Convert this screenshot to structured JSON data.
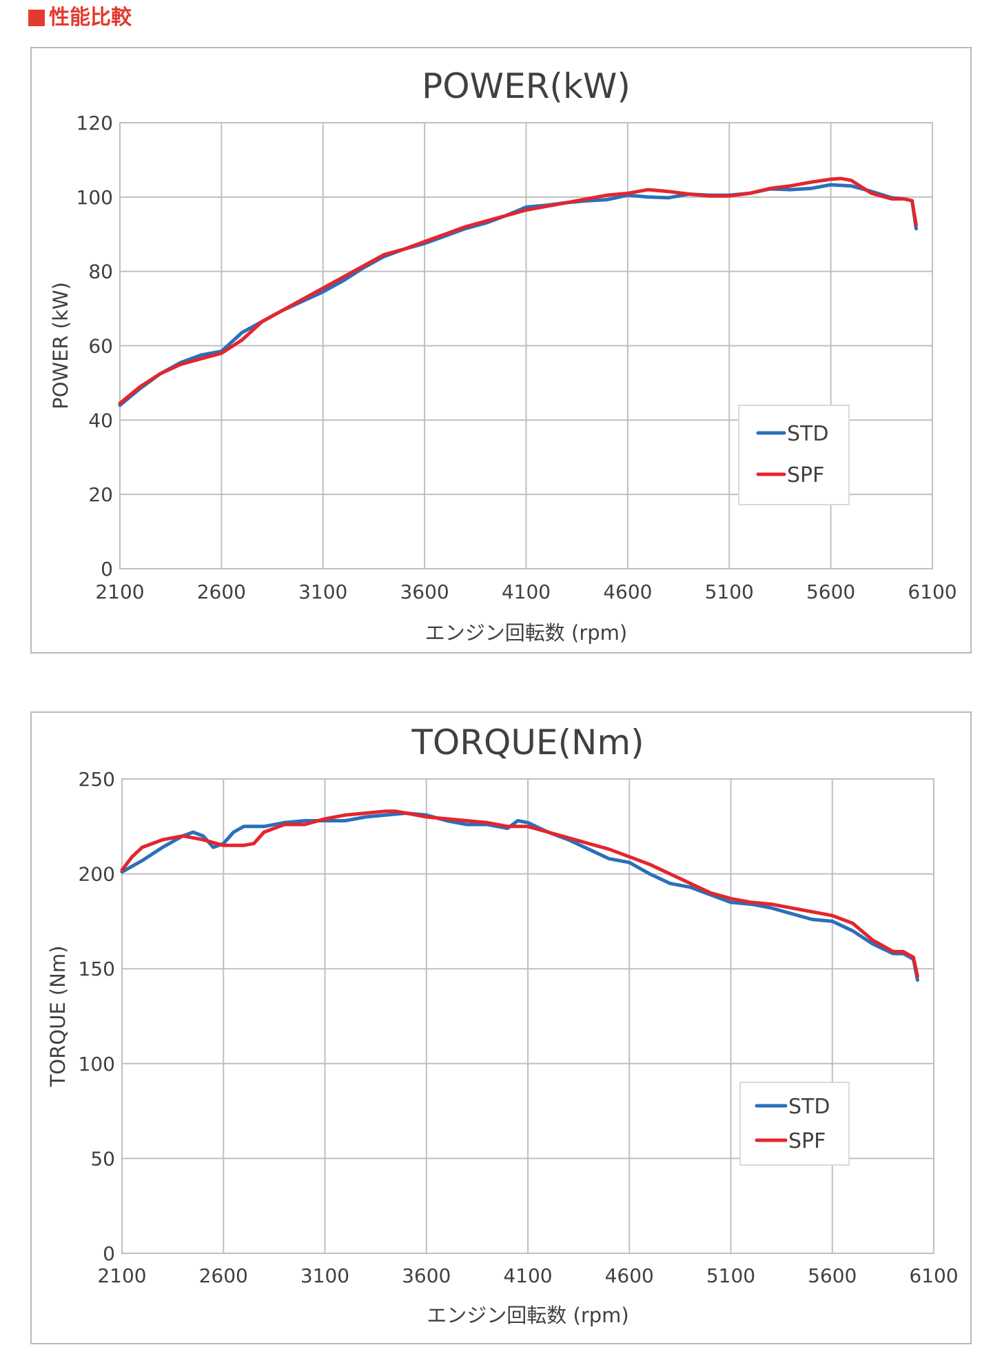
{
  "heading": {
    "text": "■性能比較",
    "label": "性能比較",
    "color": "#e33a2f"
  },
  "chart_data": [
    {
      "type": "line",
      "title": "POWER(kW)",
      "xlabel": "エンジン回転数 (rpm)",
      "ylabel": "POWER (kW)",
      "xlim": [
        2100,
        6100
      ],
      "ylim": [
        0,
        120
      ],
      "xticks": [
        2100,
        2600,
        3100,
        3600,
        4100,
        4600,
        5100,
        5600,
        6100
      ],
      "yticks": [
        0,
        20,
        40,
        60,
        80,
        100,
        120
      ],
      "grid": true,
      "legend_position": "right",
      "series": [
        {
          "name": "STD",
          "color": "#2a6fbb",
          "x": [
            2100,
            2200,
            2300,
            2400,
            2500,
            2600,
            2700,
            2800,
            2900,
            3000,
            3100,
            3200,
            3300,
            3400,
            3500,
            3600,
            3700,
            3800,
            3900,
            4000,
            4100,
            4200,
            4300,
            4400,
            4500,
            4600,
            4700,
            4800,
            4900,
            5000,
            5100,
            5200,
            5300,
            5400,
            5500,
            5600,
            5700,
            5800,
            5900,
            5960,
            6000,
            6020
          ],
          "values": [
            44,
            48.5,
            52.5,
            55.5,
            57.5,
            58.5,
            63.5,
            66.5,
            69.5,
            72,
            74.5,
            77.5,
            81,
            84,
            86,
            87.5,
            89.5,
            91.5,
            93,
            95,
            97.3,
            97.8,
            98.5,
            99,
            99.3,
            100.5,
            100,
            99.8,
            100.8,
            100.5,
            100.5,
            101,
            102.2,
            102,
            102.3,
            103.3,
            103,
            101.5,
            99.8,
            99.5,
            99,
            91.5
          ]
        },
        {
          "name": "SPF",
          "color": "#e3262d",
          "x": [
            2100,
            2200,
            2300,
            2400,
            2500,
            2600,
            2700,
            2800,
            2900,
            3000,
            3100,
            3200,
            3300,
            3400,
            3500,
            3600,
            3700,
            3800,
            3900,
            4000,
            4100,
            4200,
            4300,
            4400,
            4500,
            4600,
            4700,
            4800,
            4900,
            5000,
            5100,
            5200,
            5300,
            5400,
            5500,
            5600,
            5650,
            5700,
            5800,
            5900,
            5960,
            6000,
            6020
          ],
          "values": [
            44.5,
            49,
            52.5,
            55,
            56.5,
            58,
            61.5,
            66.5,
            69.5,
            72.5,
            75.5,
            78.5,
            81.5,
            84.5,
            86,
            88,
            90,
            92,
            93.5,
            95,
            96.5,
            97.5,
            98.5,
            99.5,
            100.5,
            101,
            102,
            101.5,
            100.8,
            100.3,
            100.3,
            101,
            102.3,
            103,
            104,
            104.8,
            105,
            104.5,
            101,
            99.5,
            99.5,
            99,
            92.5
          ]
        }
      ]
    },
    {
      "type": "line",
      "title": "TORQUE(Nm)",
      "xlabel": "エンジン回転数 (rpm)",
      "ylabel": "TORQUE (Nm)",
      "xlim": [
        2100,
        6100
      ],
      "ylim": [
        0,
        250
      ],
      "xticks": [
        2100,
        2600,
        3100,
        3600,
        4100,
        4600,
        5100,
        5600,
        6100
      ],
      "yticks": [
        0,
        50,
        100,
        150,
        200,
        250
      ],
      "grid": true,
      "legend_position": "right",
      "series": [
        {
          "name": "STD",
          "color": "#2a6fbb",
          "x": [
            2100,
            2200,
            2300,
            2400,
            2450,
            2500,
            2550,
            2600,
            2650,
            2700,
            2800,
            2900,
            3000,
            3100,
            3200,
            3300,
            3400,
            3500,
            3600,
            3700,
            3800,
            3900,
            4000,
            4050,
            4100,
            4200,
            4300,
            4400,
            4500,
            4600,
            4700,
            4800,
            4900,
            5000,
            5100,
            5200,
            5300,
            5400,
            5500,
            5600,
            5700,
            5800,
            5900,
            5950,
            6000,
            6020
          ],
          "values": [
            201,
            207,
            214,
            220,
            222,
            220,
            214,
            216,
            222,
            225,
            225,
            227,
            228,
            228,
            228,
            230,
            231,
            232,
            231,
            228,
            226,
            226,
            224,
            228,
            227,
            222,
            218,
            213,
            208,
            206,
            200,
            195,
            193,
            189,
            185,
            184,
            182,
            179,
            176,
            175,
            170,
            163,
            158,
            158,
            155,
            144
          ]
        },
        {
          "name": "SPF",
          "color": "#e3262d",
          "x": [
            2100,
            2150,
            2200,
            2300,
            2400,
            2500,
            2600,
            2700,
            2750,
            2800,
            2900,
            3000,
            3100,
            3200,
            3300,
            3400,
            3450,
            3500,
            3600,
            3700,
            3800,
            3900,
            4000,
            4100,
            4200,
            4300,
            4400,
            4500,
            4600,
            4700,
            4800,
            4900,
            5000,
            5100,
            5200,
            5300,
            5400,
            5500,
            5600,
            5700,
            5800,
            5900,
            5950,
            6000,
            6020
          ],
          "values": [
            202,
            209,
            214,
            218,
            220,
            218,
            215,
            215,
            216,
            222,
            226,
            226,
            229,
            231,
            232,
            233,
            233,
            232,
            230,
            229,
            228,
            227,
            225,
            225,
            222,
            219,
            216,
            213,
            209,
            205,
            200,
            195,
            190,
            187,
            185,
            184,
            182,
            180,
            178,
            174,
            165,
            159,
            159,
            156,
            146
          ]
        }
      ]
    }
  ]
}
